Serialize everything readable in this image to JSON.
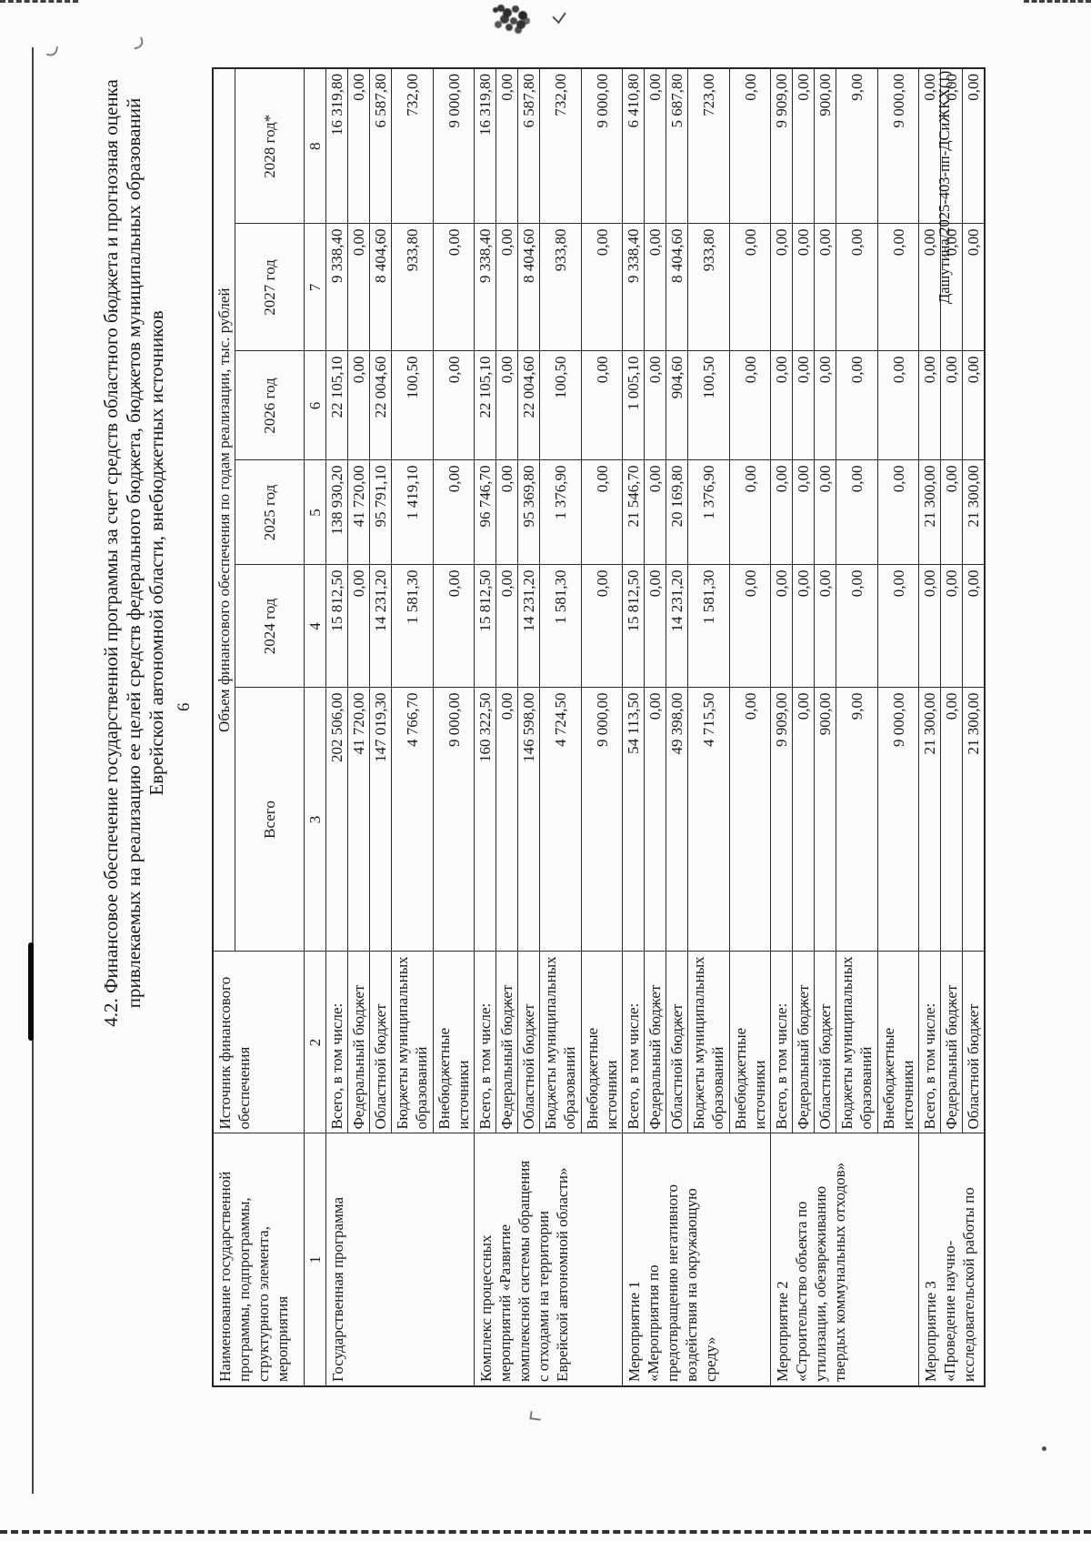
{
  "page": {
    "number": "6",
    "footer_reference": "Дашутина/2025-403-пп-ДСиЖКХ(1)"
  },
  "title": {
    "lines": [
      "4.2. Финансовое обеспечение государственной программы за счет средств областного бюджета и прогнозная оценка",
      "привлекаемых на реализацию ее целей средств федерального бюджета, бюджетов муниципальных образований",
      "Еврейской автономной области, внебюджетных источников"
    ]
  },
  "table": {
    "header": {
      "col_name": "Наименование государственной\nпрограммы, подпрограммы,\nструктурного элемента,\nмероприятия",
      "col_source": "Источник финансового обеспечения",
      "col_volume": "Объем финансового обеспечения по годам реализации, тыс. рублей",
      "year_cols": [
        "Всего",
        "2024 год",
        "2025 год",
        "2026 год",
        "2027 год",
        "2028 год*"
      ],
      "col_numbers": [
        "1",
        "2",
        "3",
        "4",
        "5",
        "6",
        "7",
        "8"
      ]
    },
    "groups": [
      {
        "name": "Государственная программа",
        "rows": [
          {
            "source": "Всего, в том числе:",
            "values": [
              "202 506,00",
              "15 812,50",
              "138 930,20",
              "22 105,10",
              "9 338,40",
              "16 319,80"
            ]
          },
          {
            "source": "Федеральный бюджет",
            "values": [
              "41 720,00",
              "0,00",
              "41 720,00",
              "0,00",
              "0,00",
              "0,00"
            ]
          },
          {
            "source": "Областной бюджет",
            "values": [
              "147 019,30",
              "14 231,20",
              "95 791,10",
              "22 004,60",
              "8 404,60",
              "6 587,80"
            ]
          },
          {
            "source": "Бюджеты муниципальных\nобразований",
            "tall": true,
            "values": [
              "4 766,70",
              "1 581,30",
              "1 419,10",
              "100,50",
              "933,80",
              "732,00"
            ]
          },
          {
            "source": "Внебюджетные источники",
            "values": [
              "9 000,00",
              "0,00",
              "0,00",
              "0,00",
              "0,00",
              "9 000,00"
            ]
          }
        ]
      },
      {
        "name": "Комплекс процессных\nмероприятий «Развитие\nкомплексной системы обращения\nс отходами на территории\nЕврейской автономной области»",
        "rows": [
          {
            "source": "Всего, в том числе:",
            "values": [
              "160 322,50",
              "15 812,50",
              "96 746,70",
              "22 105,10",
              "9 338,40",
              "16 319,80"
            ]
          },
          {
            "source": "Федеральный бюджет",
            "values": [
              "0,00",
              "0,00",
              "0,00",
              "0,00",
              "0,00",
              "0,00"
            ]
          },
          {
            "source": "Областной бюджет",
            "values": [
              "146 598,00",
              "14 231,20",
              "95 369,80",
              "22 004,60",
              "8 404,60",
              "6 587,80"
            ]
          },
          {
            "source": "Бюджеты муниципальных\nобразований",
            "tall": true,
            "values": [
              "4 724,50",
              "1 581,30",
              "1 376,90",
              "100,50",
              "933,80",
              "732,00"
            ]
          },
          {
            "source": "Внебюджетные источники",
            "values": [
              "9 000,00",
              "0,00",
              "0,00",
              "0,00",
              "0,00",
              "9 000,00"
            ]
          }
        ]
      },
      {
        "name": "Мероприятие 1\n«Мероприятия по\nпредотвращению негативного\nвоздействия на окружающую\nсреду»",
        "rows": [
          {
            "source": "Всего, в том числе:",
            "values": [
              "54 113,50",
              "15 812,50",
              "21 546,70",
              "1 005,10",
              "9 338,40",
              "6 410,80"
            ]
          },
          {
            "source": "Федеральный бюджет",
            "values": [
              "0,00",
              "0,00",
              "0,00",
              "0,00",
              "0,00",
              "0,00"
            ]
          },
          {
            "source": "Областной бюджет",
            "values": [
              "49 398,00",
              "14 231,20",
              "20 169,80",
              "904,60",
              "8 404,60",
              "5 687,80"
            ]
          },
          {
            "source": "Бюджеты муниципальных\nобразований",
            "tall": true,
            "values": [
              "4 715,50",
              "1 581,30",
              "1 376,90",
              "100,50",
              "933,80",
              "723,00"
            ]
          },
          {
            "source": "Внебюджетные источники",
            "values": [
              "0,00",
              "0,00",
              "0,00",
              "0,00",
              "0,00",
              "0,00"
            ]
          }
        ]
      },
      {
        "name": "Мероприятие 2\n«Строительство объекта по\nутилизации, обезвреживанию\nтвердых коммунальных отходов»",
        "rows": [
          {
            "source": "Всего, в том числе:",
            "values": [
              "9 909,00",
              "0,00",
              "0,00",
              "0,00",
              "0,00",
              "9 909,00"
            ]
          },
          {
            "source": "Федеральный бюджет",
            "values": [
              "0,00",
              "0,00",
              "0,00",
              "0,00",
              "0,00",
              "0,00"
            ]
          },
          {
            "source": "Областной бюджет",
            "values": [
              "900,00",
              "0,00",
              "0,00",
              "0,00",
              "0,00",
              "900,00"
            ]
          },
          {
            "source": "Бюджеты муниципальных\nобразований",
            "tall": true,
            "values": [
              "9,00",
              "0,00",
              "0,00",
              "0,00",
              "0,00",
              "9,00"
            ]
          },
          {
            "source": "Внебюджетные источники",
            "values": [
              "9 000,00",
              "0,00",
              "0,00",
              "0,00",
              "0,00",
              "9 000,00"
            ]
          }
        ]
      },
      {
        "name": "Мероприятие 3\n«Проведение научно-\nисследовательской работы по",
        "rows": [
          {
            "source": "Всего, в том числе:",
            "values": [
              "21 300,00",
              "0,00",
              "21 300,00",
              "0,00",
              "0,00",
              "0,00"
            ]
          },
          {
            "source": "Федеральный бюджет",
            "values": [
              "0,00",
              "0,00",
              "0,00",
              "0,00",
              "0,00",
              "0,00"
            ]
          },
          {
            "source": "Областной бюджет",
            "values": [
              "21 300,00",
              "0,00",
              "21 300,00",
              "0,00",
              "0,00",
              "0,00"
            ]
          }
        ]
      }
    ]
  }
}
